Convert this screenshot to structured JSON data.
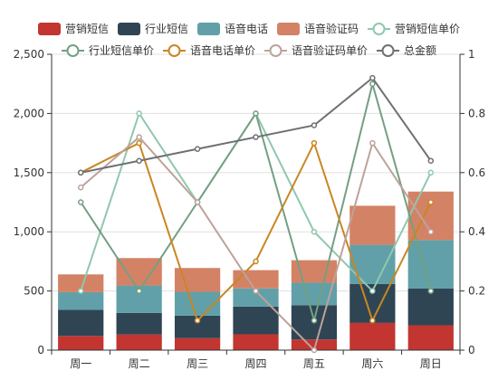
{
  "chart_data": {
    "type": "bar",
    "title": "",
    "xlabel": "",
    "ylabel": "",
    "ylim": [
      0,
      2500
    ],
    "y2lim": [
      0,
      1
    ],
    "categories": [
      "周一",
      "周二",
      "周三",
      "周四",
      "周五",
      "周六",
      "周日"
    ],
    "y_ticks": [
      "0",
      "500",
      "1,000",
      "1,500",
      "2,000",
      "2,500"
    ],
    "y2_ticks": [
      "0",
      "0.2",
      "0.4",
      "0.6",
      "0.8",
      "1"
    ],
    "grid": true,
    "legend_position": "top",
    "stacked_bars": [
      {
        "name": "营销短信",
        "color": "#c23531",
        "values": [
          120,
          132,
          101,
          134,
          90,
          230,
          210
        ]
      },
      {
        "name": "行业短信",
        "color": "#2f4554",
        "values": [
          220,
          182,
          191,
          234,
          290,
          330,
          310
        ]
      },
      {
        "name": "语音电话",
        "color": "#61a0a8",
        "values": [
          150,
          232,
          201,
          154,
          190,
          330,
          410
        ]
      },
      {
        "name": "语音验证码",
        "color": "#d48265",
        "values": [
          150,
          232,
          201,
          154,
          190,
          330,
          410
        ]
      }
    ],
    "lines": [
      {
        "name": "营销短信单价",
        "axis": "right",
        "color": "#91c7ae",
        "values": [
          0.2,
          0.8,
          0.5,
          0.8,
          0.4,
          0.2,
          0.6
        ]
      },
      {
        "name": "行业短信单价",
        "axis": "right",
        "color": "#749f83",
        "values": [
          0.5,
          0.2,
          0.5,
          0.8,
          0.1,
          0.9,
          0.2
        ]
      },
      {
        "name": "语音电话单价",
        "axis": "right",
        "color": "#ca8622",
        "values": [
          0.6,
          0.7,
          0.1,
          0.3,
          0.7,
          0.1,
          0.5
        ]
      },
      {
        "name": "语音验证码单价",
        "axis": "right",
        "color": "#bda29a",
        "values": [
          0.55,
          0.72,
          0.5,
          0.2,
          0.0,
          0.7,
          0.4
        ]
      },
      {
        "name": "总金额",
        "axis": "left",
        "color": "#6e7074",
        "values": [
          1500,
          1600,
          1700,
          1800,
          1900,
          2300,
          1600
        ]
      }
    ]
  }
}
